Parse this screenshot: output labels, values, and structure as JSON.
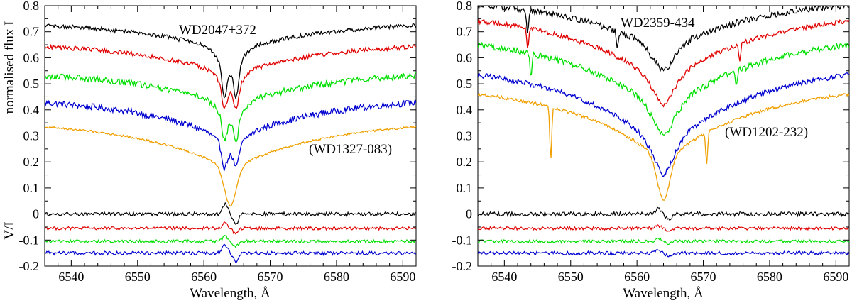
{
  "chart_data": [
    {
      "type": "line",
      "annotation_main": "WD2047+372",
      "annotation_secondary": "(WD1327-083)",
      "xlabel": "Wavelength, Å",
      "ylabel_top": "normalised flux I",
      "ylabel_bottom": "V/I",
      "xlim": [
        6536,
        6592
      ],
      "ylim": [
        -0.2,
        0.8
      ],
      "x_ticks": [
        6540,
        6550,
        6560,
        6570,
        6580,
        6590
      ],
      "y_ticks": [
        -0.2,
        -0.1,
        0,
        0.1,
        0.2,
        0.3,
        0.4,
        0.5,
        0.6,
        0.7,
        0.8
      ],
      "intensity_series": [
        {
          "name": "black",
          "color": "#000000",
          "offset": 0.74,
          "core": 0.08,
          "width": 5.0,
          "wing": 0.12,
          "noise": 0.008,
          "split": true
        },
        {
          "name": "red",
          "color": "#e00000",
          "offset": 0.66,
          "core": 0.06,
          "width": 5.0,
          "wing": 0.13,
          "noise": 0.009,
          "split": true
        },
        {
          "name": "green",
          "color": "#00e000",
          "offset": 0.55,
          "core": 0.06,
          "width": 5.0,
          "wing": 0.14,
          "noise": 0.012,
          "split": true
        },
        {
          "name": "blue",
          "color": "#0000d0",
          "offset": 0.45,
          "core": 0.05,
          "width": 5.0,
          "wing": 0.17,
          "noise": 0.012,
          "split": true
        },
        {
          "name": "orange",
          "color": "#f0a000",
          "offset": 0.36,
          "core": 0.14,
          "width": 1.6,
          "wing": 0.19,
          "noise": 0.004,
          "split": false
        }
      ],
      "polarization_series": [
        {
          "name": "black",
          "color": "#000000",
          "offset": 0.0,
          "noise": 0.007,
          "feature": 0.04
        },
        {
          "name": "red",
          "color": "#e00000",
          "offset": -0.055,
          "noise": 0.006,
          "feature": 0.02
        },
        {
          "name": "green",
          "color": "#00e000",
          "offset": -0.105,
          "noise": 0.006,
          "feature": 0.02
        },
        {
          "name": "blue",
          "color": "#0000d0",
          "offset": -0.15,
          "noise": 0.007,
          "feature": 0.03
        }
      ],
      "absorption_lines": []
    },
    {
      "type": "line",
      "annotation_main": "WD2359-434",
      "annotation_secondary": "(WD1202-232)",
      "xlabel": "Wavelength, Å",
      "ylabel_top": "",
      "ylabel_bottom": "",
      "xlim": [
        6536,
        6592
      ],
      "ylim": [
        -0.2,
        0.8
      ],
      "x_ticks": [
        6540,
        6550,
        6560,
        6570,
        6580,
        6590
      ],
      "y_ticks": [
        -0.2,
        -0.1,
        0,
        0.1,
        0.2,
        0.3,
        0.4,
        0.5,
        0.6,
        0.7,
        0.8
      ],
      "intensity_series": [
        {
          "name": "black",
          "color": "#000000",
          "offset": 0.83,
          "core": 0.07,
          "width": 5.5,
          "wing": 0.21,
          "noise": 0.012,
          "split": false
        },
        {
          "name": "red",
          "color": "#e00000",
          "offset": 0.78,
          "core": 0.07,
          "width": 5.5,
          "wing": 0.29,
          "noise": 0.009,
          "split": false
        },
        {
          "name": "green",
          "color": "#00e000",
          "offset": 0.69,
          "core": 0.08,
          "width": 5.5,
          "wing": 0.31,
          "noise": 0.012,
          "split": false
        },
        {
          "name": "blue",
          "color": "#0000d0",
          "offset": 0.58,
          "core": 0.09,
          "width": 5.0,
          "wing": 0.34,
          "noise": 0.01,
          "split": false
        },
        {
          "name": "orange",
          "color": "#f0a000",
          "offset": 0.5,
          "core": 0.15,
          "width": 1.8,
          "wing": 0.3,
          "noise": 0.006,
          "split": false
        }
      ],
      "polarization_series": [
        {
          "name": "black",
          "color": "#000000",
          "offset": 0.0,
          "noise": 0.008,
          "feature": 0.02
        },
        {
          "name": "red",
          "color": "#e00000",
          "offset": -0.055,
          "noise": 0.006,
          "feature": 0.01
        },
        {
          "name": "green",
          "color": "#00e000",
          "offset": -0.105,
          "noise": 0.006,
          "feature": 0.01
        },
        {
          "name": "blue",
          "color": "#0000d0",
          "offset": -0.15,
          "noise": 0.007,
          "feature": 0.01
        }
      ],
      "absorption_lines": [
        {
          "series": "orange",
          "x": 6547.0,
          "depth": 0.2
        },
        {
          "series": "orange",
          "x": 6570.5,
          "depth": 0.12
        },
        {
          "series": "black",
          "x": 6543.5,
          "depth": 0.1
        },
        {
          "series": "red",
          "x": 6543.5,
          "depth": 0.08
        },
        {
          "series": "green",
          "x": 6544.0,
          "depth": 0.1
        },
        {
          "series": "black",
          "x": 6557.0,
          "depth": 0.07
        },
        {
          "series": "red",
          "x": 6575.5,
          "depth": 0.07
        },
        {
          "series": "green",
          "x": 6575.0,
          "depth": 0.05
        }
      ]
    }
  ]
}
